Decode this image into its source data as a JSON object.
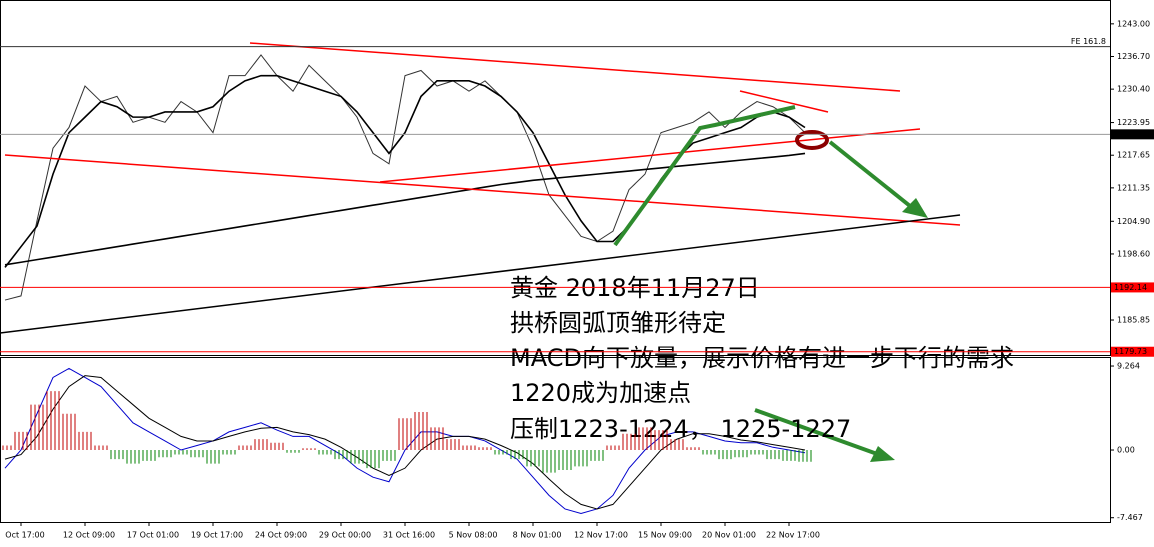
{
  "chart_data": [
    {
      "type": "line",
      "categories": [
        null,
        "Oct 17:00",
        null,
        null,
        null,
        "12 Oct 09:00",
        null,
        null,
        null,
        "17 Oct 01:00",
        null,
        null,
        null,
        "19 Oct 17:00",
        null,
        null,
        null,
        "24 Oct 09:00",
        null,
        null,
        null,
        "29 Oct 00:00",
        null,
        null,
        null,
        "31 Oct 16:00",
        null,
        null,
        null,
        "5 Nov 08:00",
        null,
        null,
        null,
        "8 Nov 01:00",
        null,
        null,
        null,
        "12 Nov 17:00",
        null,
        null,
        null,
        "15 Nov 09:00",
        null,
        null,
        null,
        "20 Nov 01:00",
        null,
        null,
        null,
        "22 Nov 17:00",
        null
      ],
      "series": [
        {
          "color": "#333333",
          "values": [
            1189.7,
            1190.5,
            1205,
            1219,
            1223,
            1231,
            1228,
            1229,
            1224,
            1225,
            1224,
            1228,
            1226,
            1222,
            1233,
            1233,
            1237,
            1233,
            1230,
            1235,
            1232,
            1229,
            1225,
            1218,
            1216,
            1233,
            1234,
            1231,
            1232,
            1230,
            1232,
            1229,
            1226,
            1219,
            1210,
            1206,
            1202,
            1201,
            1203,
            1211,
            1214,
            1222,
            1223,
            1224,
            1226,
            1223,
            1226,
            1228,
            1227,
            1225,
            1222
          ]
        },
        {
          "color": "#000000",
          "values": [
            1196,
            1200,
            1204,
            1214,
            1222,
            1225,
            1228,
            1227,
            1225,
            1225,
            1226,
            1226,
            1226,
            1227,
            1230,
            1232,
            1233,
            1233,
            1232,
            1231,
            1230,
            1229,
            1226,
            1222,
            1218,
            1222,
            1229,
            1232,
            1232,
            1232,
            1231,
            1229,
            1226,
            1222,
            1216,
            1210,
            1205,
            1201,
            1201,
            1204,
            1208,
            1213,
            1217,
            1220,
            1221,
            1222,
            1223,
            1225,
            1226,
            1225,
            1223
          ]
        },
        {
          "color": "#000000",
          "values": [
            1196.5,
            1197.0,
            1197.5,
            1198.0,
            1198.5,
            1199.0,
            1199.5,
            1200.0,
            1200.5,
            1201.0,
            1201.5,
            1202.0,
            1202.5,
            1203.0,
            1203.5,
            1204.0,
            1204.5,
            1205.0,
            1205.5,
            1206.0,
            1206.5,
            1207.0,
            1207.5,
            1208.0,
            1208.5,
            1209.0,
            1209.5,
            1210.0,
            1210.5,
            1211.0,
            1211.5,
            1212.0,
            1212.4,
            1212.8,
            1213.1,
            1213.4,
            1213.7,
            1214.0,
            1214.3,
            1214.6,
            1214.9,
            1215.2,
            1215.5,
            1215.8,
            1216.1,
            1216.4,
            1216.7,
            1217.0,
            1217.3,
            1217.6,
            1218.0
          ]
        }
      ],
      "ylim": [
        1179.1,
        1247.6
      ],
      "yticks": [
        {
          "value": 1243,
          "label": "1243.00"
        },
        {
          "value": 1236.7,
          "label": "1236.70"
        },
        {
          "value": 1230.4,
          "label": "1230.40"
        },
        1223.95,
        1217.65,
        1211.35,
        {
          "value": 1204.9,
          "label": "1204.90"
        },
        {
          "value": 1198.6,
          "label": "1198.60"
        },
        1185.85
      ],
      "levels": [
        {
          "value": 1238.6,
          "label": "FE 161.8",
          "color": "#333333"
        },
        {
          "value": 1221.68,
          "color": "#999999",
          "box": "#000000"
        },
        {
          "value": 1192.14,
          "color": "#ff0000",
          "box": "#ff0000"
        },
        {
          "value": 1179.73,
          "color": "#ff0000",
          "box": "#ff0000"
        }
      ]
    },
    {
      "type": "macd",
      "series": [
        {
          "color": "#0000cc",
          "values": [
            -2,
            0,
            4,
            8,
            9,
            8,
            7,
            5,
            3,
            2,
            1,
            0,
            0.5,
            1,
            2,
            2.5,
            3,
            2.2,
            1.5,
            1.5,
            0.5,
            -0.5,
            -2,
            -3,
            -3.5,
            0,
            2,
            2,
            1.5,
            1.5,
            1,
            0,
            -1,
            -3,
            -5,
            -6.5,
            -7,
            -6.5,
            -5,
            -2,
            0,
            1.5,
            2,
            2,
            1.5,
            1,
            0.8,
            0.8,
            0.3,
            0,
            -0.3
          ]
        },
        {
          "color": "#000000",
          "values": [
            -1,
            -0.5,
            1.5,
            4.5,
            7,
            8.2,
            8,
            6.5,
            5,
            3.5,
            2.5,
            1.5,
            1,
            1,
            1.5,
            2,
            2.4,
            2.5,
            2,
            1.7,
            1.2,
            0.3,
            -0.8,
            -2,
            -2.8,
            -2,
            0,
            1.2,
            1.5,
            1.5,
            1.2,
            0.5,
            -0.3,
            -1.5,
            -3.2,
            -4.8,
            -6,
            -6.5,
            -6,
            -4,
            -2,
            0,
            1.2,
            1.8,
            1.8,
            1.5,
            1.1,
            0.9,
            0.6,
            0.3,
            0
          ]
        }
      ],
      "histogram": {
        "up_color": "#c00000",
        "down_color": "#008000",
        "values": [
          0.5,
          2,
          5,
          6.5,
          4,
          2,
          0.5,
          -1,
          -1.5,
          -1.2,
          -0.8,
          -0.5,
          -0.8,
          -1.5,
          -0.5,
          0.5,
          1.2,
          0.8,
          -0.3,
          0.2,
          -0.5,
          -1,
          -1.5,
          -2,
          -1.2,
          3.5,
          4.2,
          2.5,
          1.2,
          0.5,
          0.3,
          -0.5,
          -1,
          -1.8,
          -2.5,
          -2.2,
          -1.8,
          -1.2,
          0.5,
          1.8,
          2.5,
          2.2,
          1.2,
          0.3,
          -0.5,
          -1,
          -0.8,
          -0.5,
          -1,
          -1.2,
          -1.3
        ]
      },
      "ylim": [
        -7.94,
        10.26
      ],
      "yticks": [
        9.264,
        {
          "value": 0,
          "label": "0.00"
        },
        -7.467
      ]
    }
  ],
  "annotations": [
    "黄金 2018年11月27日",
    "拱桥圆弧顶雏形待定",
    "MACD向下放量，展示价格有进一步下行的需求",
    "1220成为加速点",
    "压制1223-1224，  1225-1227"
  ]
}
